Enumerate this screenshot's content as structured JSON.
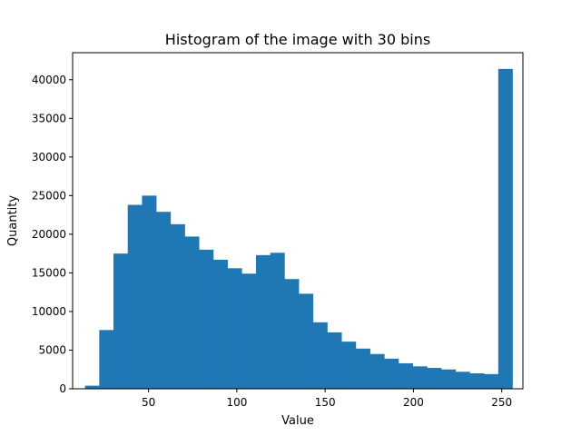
{
  "chart_data": {
    "type": "bar",
    "title": "Histogram of the image with 30 bins",
    "xlabel": "Value",
    "ylabel": "Quantity",
    "xlim": [
      7.0,
      262.0
    ],
    "ylim": [
      0,
      43500
    ],
    "x_ticks": [
      50,
      100,
      150,
      200,
      250
    ],
    "y_ticks": [
      0,
      5000,
      10000,
      15000,
      20000,
      25000,
      30000,
      35000,
      40000
    ],
    "bin_start": 14,
    "bin_width": 8.07,
    "values": [
      400,
      7600,
      17500,
      23800,
      25000,
      22900,
      21300,
      19700,
      18000,
      16700,
      15600,
      14900,
      17300,
      17600,
      14200,
      12300,
      8600,
      7300,
      6100,
      5200,
      4500,
      3900,
      3300,
      2900,
      2700,
      2500,
      2200,
      2000,
      1900,
      41400
    ],
    "bar_color": "#1f77b4",
    "grid": false
  }
}
